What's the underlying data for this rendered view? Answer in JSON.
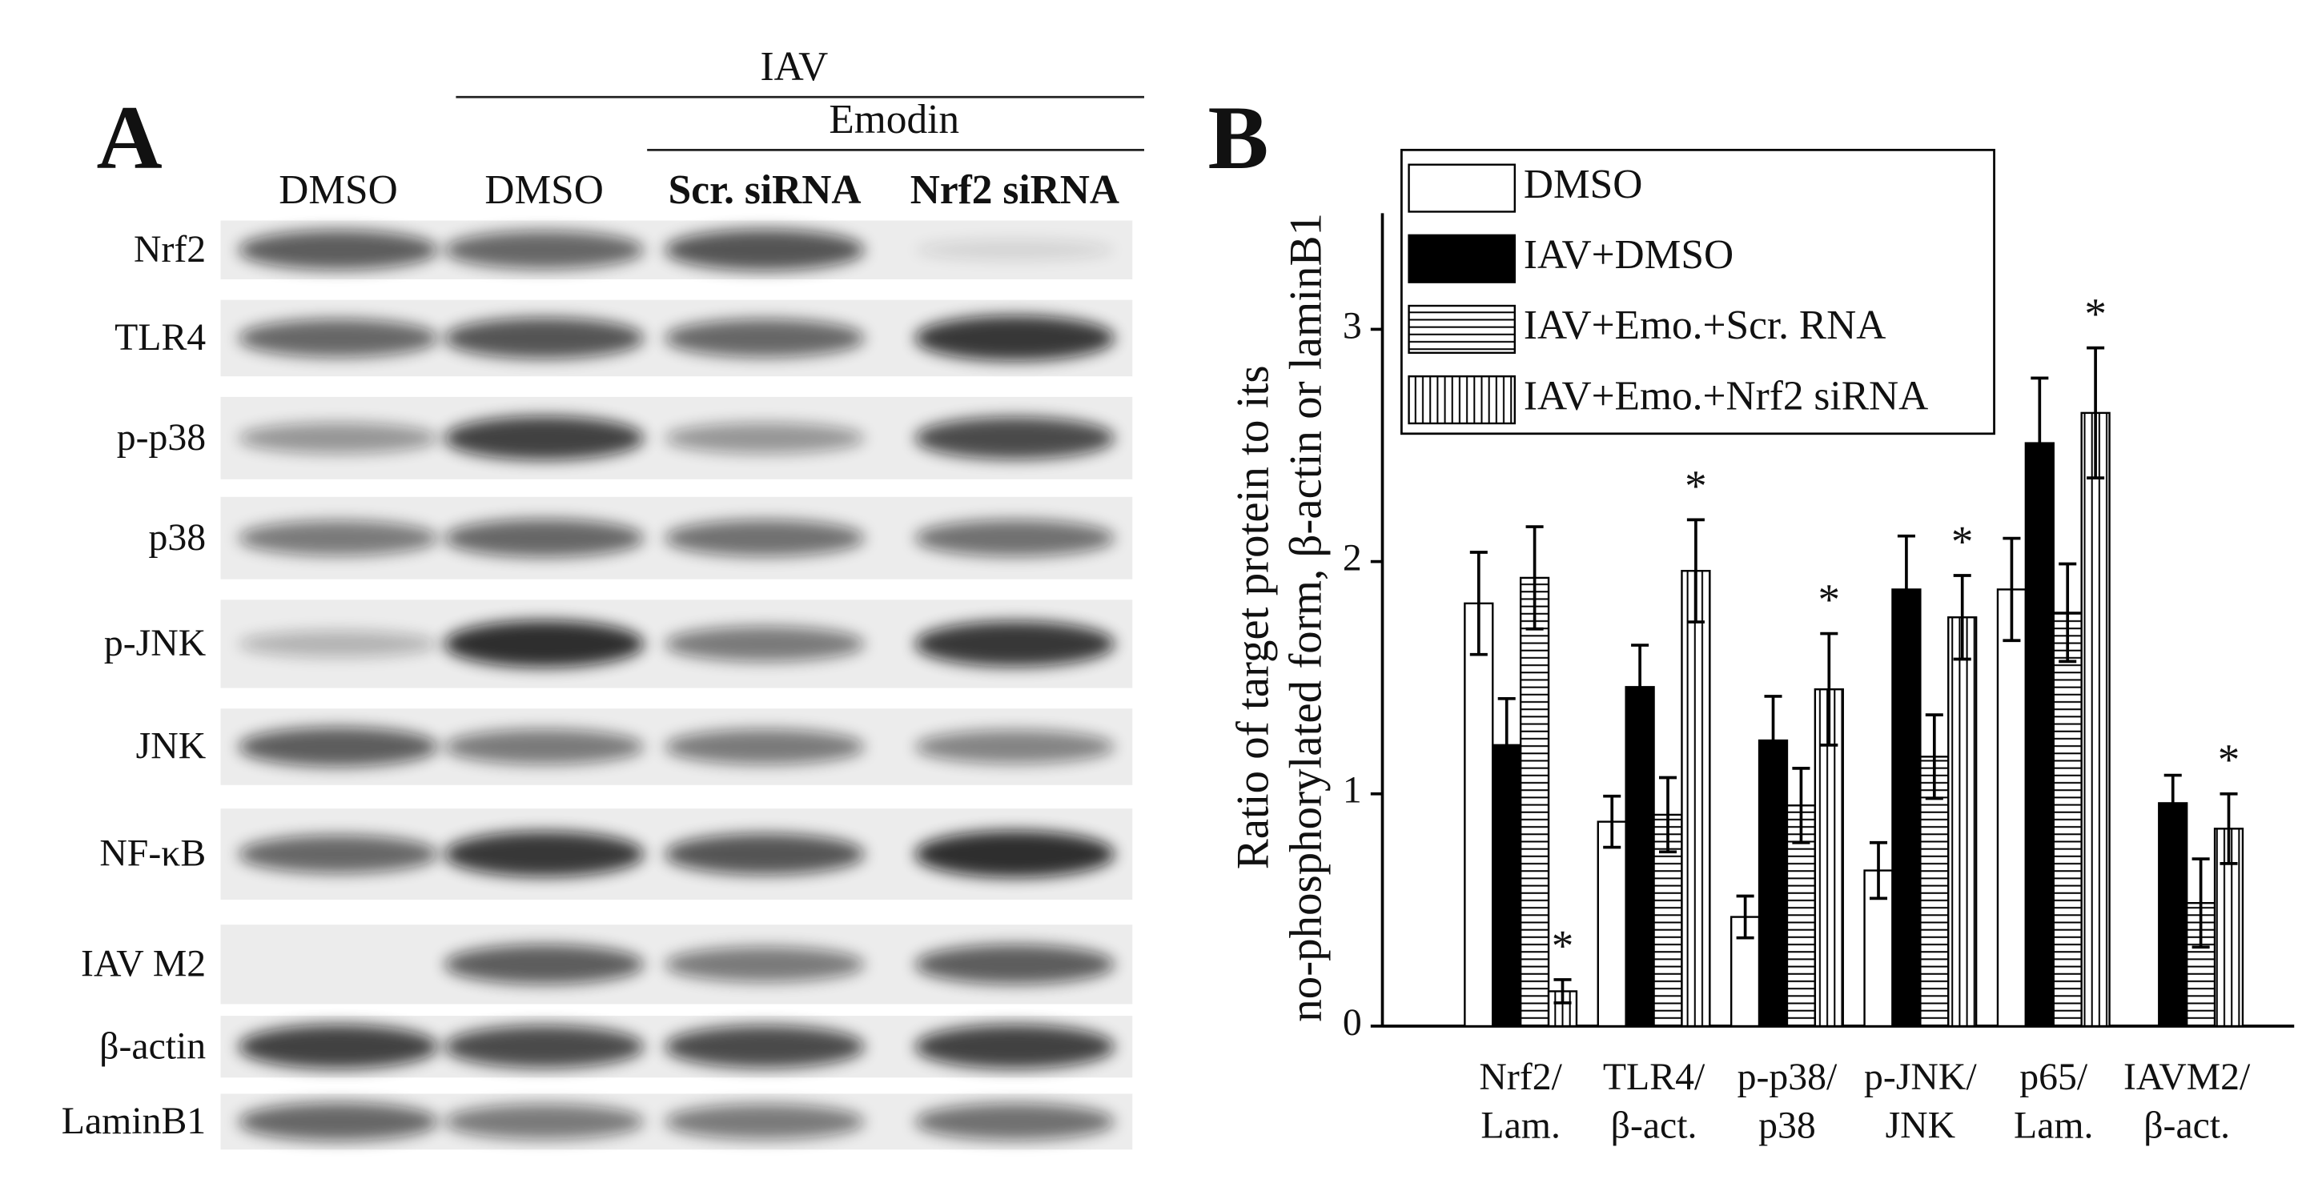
{
  "panel_a": {
    "label": "A",
    "group_header": "IAV",
    "subgroup_header": "Emodin",
    "lanes": [
      "DMSO",
      "DMSO",
      "Scr. siRNA",
      "Nrf2 siRNA"
    ],
    "rows": [
      "Nrf2",
      "TLR4",
      "p-p38",
      "p38",
      "p-JNK",
      "JNK",
      "NF-κB",
      "IAV M2",
      "β-actin",
      "LaminB1"
    ]
  },
  "chart_data": {
    "type": "bar",
    "panel_label": "B",
    "y_label": [
      "Ratio of target protein to its",
      "no-phosphorylated form, β-actin or laminB1"
    ],
    "categories": [
      [
        "Nrf2/",
        "Lam."
      ],
      [
        "TLR4/",
        "β-act."
      ],
      [
        "p-p38/",
        "p38"
      ],
      [
        "p-JNK/",
        "JNK"
      ],
      [
        "p65/",
        "Lam."
      ],
      [
        "IAVM2/",
        "β-act."
      ]
    ],
    "ylim": [
      0,
      3.5
    ],
    "yticks": [
      0,
      1,
      2,
      3
    ],
    "legend": "top-left",
    "series": [
      {
        "name": "DMSO",
        "color": "#ffffff",
        "pattern": "solid",
        "values": [
          1.82,
          0.88,
          0.47,
          0.67,
          1.88,
          null
        ],
        "errors": [
          0.22,
          0.11,
          0.09,
          0.12,
          0.22,
          null
        ]
      },
      {
        "name": "IAV+DMSO",
        "color": "#000000",
        "pattern": "solid",
        "values": [
          1.21,
          1.46,
          1.23,
          1.88,
          2.51,
          0.96
        ],
        "errors": [
          0.2,
          0.18,
          0.19,
          0.23,
          0.28,
          0.12
        ]
      },
      {
        "name": "IAV+Emo.+Scr. RNA",
        "color": "#000000",
        "pattern": "horizontal",
        "values": [
          1.93,
          0.91,
          0.95,
          1.16,
          1.78,
          0.53
        ],
        "errors": [
          0.22,
          0.16,
          0.16,
          0.18,
          0.21,
          0.19
        ]
      },
      {
        "name": "IAV+Emo.+Nrf2 siRNA",
        "color": "#000000",
        "pattern": "vertical",
        "values": [
          0.15,
          1.96,
          1.45,
          1.76,
          2.64,
          0.85
        ],
        "errors": [
          0.05,
          0.22,
          0.24,
          0.18,
          0.28,
          0.15
        ],
        "markers": [
          "*",
          "*",
          "*",
          "*",
          "*",
          "*"
        ]
      }
    ]
  }
}
